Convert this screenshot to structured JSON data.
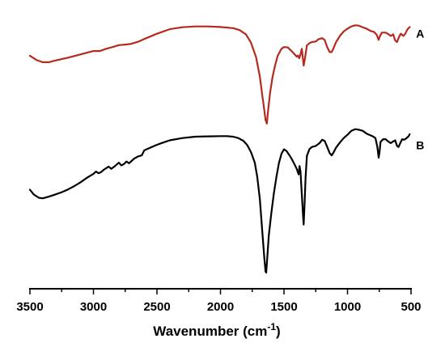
{
  "chart_data": {
    "type": "line",
    "title": "",
    "xlabel": "Wavenumber (cm",
    "xlabel_sup": "-1",
    "xlabel_close": ")",
    "ylabel": "",
    "xlim": [
      3500,
      500
    ],
    "ylim": [
      0,
      1
    ],
    "x_reversed": true,
    "y_ticks_shown": false,
    "grid": false,
    "xticks": [
      3500,
      3000,
      2500,
      2000,
      1500,
      1000,
      500
    ],
    "series": [
      {
        "name": "A",
        "color": "#b52a1f",
        "points": [
          [
            3500,
            0.835
          ],
          [
            3450,
            0.82
          ],
          [
            3400,
            0.812
          ],
          [
            3350,
            0.812
          ],
          [
            3300,
            0.818
          ],
          [
            3200,
            0.828
          ],
          [
            3100,
            0.84
          ],
          [
            3000,
            0.852
          ],
          [
            2950,
            0.852
          ],
          [
            2900,
            0.86
          ],
          [
            2850,
            0.866
          ],
          [
            2800,
            0.873
          ],
          [
            2750,
            0.875
          ],
          [
            2700,
            0.878
          ],
          [
            2650,
            0.885
          ],
          [
            2600,
            0.895
          ],
          [
            2500,
            0.914
          ],
          [
            2400,
            0.93
          ],
          [
            2300,
            0.937
          ],
          [
            2200,
            0.94
          ],
          [
            2100,
            0.94
          ],
          [
            2000,
            0.938
          ],
          [
            1900,
            0.934
          ],
          [
            1850,
            0.927
          ],
          [
            1800,
            0.912
          ],
          [
            1760,
            0.882
          ],
          [
            1720,
            0.83
          ],
          [
            1690,
            0.76
          ],
          [
            1670,
            0.69
          ],
          [
            1655,
            0.64
          ],
          [
            1645,
            0.605
          ],
          [
            1635,
            0.592
          ],
          [
            1625,
            0.64
          ],
          [
            1610,
            0.7
          ],
          [
            1590,
            0.76
          ],
          [
            1570,
            0.8
          ],
          [
            1550,
            0.835
          ],
          [
            1520,
            0.86
          ],
          [
            1500,
            0.866
          ],
          [
            1470,
            0.865
          ],
          [
            1450,
            0.856
          ],
          [
            1420,
            0.842
          ],
          [
            1400,
            0.832
          ],
          [
            1390,
            0.836
          ],
          [
            1380,
            0.826
          ],
          [
            1370,
            0.84
          ],
          [
            1360,
            0.86
          ],
          [
            1350,
            0.82
          ],
          [
            1345,
            0.8
          ],
          [
            1335,
            0.825
          ],
          [
            1320,
            0.872
          ],
          [
            1300,
            0.88
          ],
          [
            1280,
            0.884
          ],
          [
            1250,
            0.886
          ],
          [
            1230,
            0.894
          ],
          [
            1200,
            0.898
          ],
          [
            1180,
            0.892
          ],
          [
            1160,
            0.866
          ],
          [
            1140,
            0.848
          ],
          [
            1125,
            0.848
          ],
          [
            1110,
            0.862
          ],
          [
            1090,
            0.884
          ],
          [
            1060,
            0.906
          ],
          [
            1030,
            0.922
          ],
          [
            1000,
            0.932
          ],
          [
            970,
            0.94
          ],
          [
            940,
            0.944
          ],
          [
            910,
            0.943
          ],
          [
            880,
            0.937
          ],
          [
            850,
            0.932
          ],
          [
            820,
            0.924
          ],
          [
            790,
            0.92
          ],
          [
            770,
            0.91
          ],
          [
            755,
            0.892
          ],
          [
            745,
            0.905
          ],
          [
            730,
            0.918
          ],
          [
            700,
            0.918
          ],
          [
            680,
            0.913
          ],
          [
            660,
            0.906
          ],
          [
            640,
            0.912
          ],
          [
            625,
            0.89
          ],
          [
            610,
            0.884
          ],
          [
            595,
            0.902
          ],
          [
            580,
            0.914
          ],
          [
            560,
            0.906
          ],
          [
            545,
            0.914
          ],
          [
            530,
            0.928
          ],
          [
            520,
            0.934
          ],
          [
            510,
            0.938
          ]
        ]
      },
      {
        "name": "B",
        "color": "#000000",
        "points": [
          [
            3500,
            0.355
          ],
          [
            3470,
            0.338
          ],
          [
            3430,
            0.326
          ],
          [
            3400,
            0.324
          ],
          [
            3350,
            0.33
          ],
          [
            3300,
            0.338
          ],
          [
            3250,
            0.346
          ],
          [
            3200,
            0.356
          ],
          [
            3150,
            0.368
          ],
          [
            3100,
            0.382
          ],
          [
            3050,
            0.398
          ],
          [
            3000,
            0.412
          ],
          [
            2980,
            0.42
          ],
          [
            2960,
            0.414
          ],
          [
            2940,
            0.418
          ],
          [
            2920,
            0.426
          ],
          [
            2880,
            0.438
          ],
          [
            2860,
            0.43
          ],
          [
            2830,
            0.44
          ],
          [
            2800,
            0.452
          ],
          [
            2780,
            0.442
          ],
          [
            2760,
            0.447
          ],
          [
            2740,
            0.456
          ],
          [
            2720,
            0.45
          ],
          [
            2700,
            0.458
          ],
          [
            2680,
            0.466
          ],
          [
            2650,
            0.474
          ],
          [
            2620,
            0.478
          ],
          [
            2600,
            0.496
          ],
          [
            2550,
            0.506
          ],
          [
            2500,
            0.516
          ],
          [
            2450,
            0.524
          ],
          [
            2400,
            0.532
          ],
          [
            2300,
            0.54
          ],
          [
            2200,
            0.545
          ],
          [
            2100,
            0.546
          ],
          [
            2000,
            0.547
          ],
          [
            1950,
            0.547
          ],
          [
            1900,
            0.545
          ],
          [
            1860,
            0.54
          ],
          [
            1820,
            0.53
          ],
          [
            1790,
            0.515
          ],
          [
            1760,
            0.49
          ],
          [
            1730,
            0.452
          ],
          [
            1710,
            0.4
          ],
          [
            1690,
            0.32
          ],
          [
            1670,
            0.2
          ],
          [
            1655,
            0.11
          ],
          [
            1645,
            0.062
          ],
          [
            1640,
            0.058
          ],
          [
            1632,
            0.11
          ],
          [
            1620,
            0.19
          ],
          [
            1600,
            0.27
          ],
          [
            1580,
            0.34
          ],
          [
            1560,
            0.4
          ],
          [
            1540,
            0.45
          ],
          [
            1520,
            0.484
          ],
          [
            1500,
            0.5
          ],
          [
            1480,
            0.494
          ],
          [
            1460,
            0.48
          ],
          [
            1440,
            0.466
          ],
          [
            1420,
            0.448
          ],
          [
            1400,
            0.43
          ],
          [
            1385,
            0.41
          ],
          [
            1378,
            0.44
          ],
          [
            1370,
            0.42
          ],
          [
            1360,
            0.34
          ],
          [
            1350,
            0.26
          ],
          [
            1345,
            0.23
          ],
          [
            1338,
            0.3
          ],
          [
            1330,
            0.4
          ],
          [
            1320,
            0.476
          ],
          [
            1300,
            0.5
          ],
          [
            1280,
            0.508
          ],
          [
            1250,
            0.512
          ],
          [
            1220,
            0.522
          ],
          [
            1200,
            0.534
          ],
          [
            1180,
            0.53
          ],
          [
            1160,
            0.508
          ],
          [
            1140,
            0.486
          ],
          [
            1125,
            0.478
          ],
          [
            1110,
            0.488
          ],
          [
            1090,
            0.506
          ],
          [
            1060,
            0.524
          ],
          [
            1030,
            0.54
          ],
          [
            1000,
            0.552
          ],
          [
            970,
            0.566
          ],
          [
            940,
            0.572
          ],
          [
            910,
            0.57
          ],
          [
            880,
            0.566
          ],
          [
            850,
            0.556
          ],
          [
            820,
            0.55
          ],
          [
            800,
            0.546
          ],
          [
            780,
            0.54
          ],
          [
            765,
            0.508
          ],
          [
            755,
            0.47
          ],
          [
            748,
            0.49
          ],
          [
            740,
            0.526
          ],
          [
            720,
            0.536
          ],
          [
            700,
            0.536
          ],
          [
            680,
            0.528
          ],
          [
            660,
            0.522
          ],
          [
            640,
            0.528
          ],
          [
            625,
            0.532
          ],
          [
            610,
            0.512
          ],
          [
            598,
            0.508
          ],
          [
            585,
            0.522
          ],
          [
            570,
            0.536
          ],
          [
            560,
            0.534
          ],
          [
            545,
            0.536
          ],
          [
            530,
            0.542
          ],
          [
            520,
            0.546
          ],
          [
            510,
            0.554
          ]
        ]
      }
    ],
    "annotations": [
      {
        "text": "A",
        "x": 460,
        "y": 0.9
      },
      {
        "text": "B",
        "x": 460,
        "y": 0.5
      }
    ]
  }
}
